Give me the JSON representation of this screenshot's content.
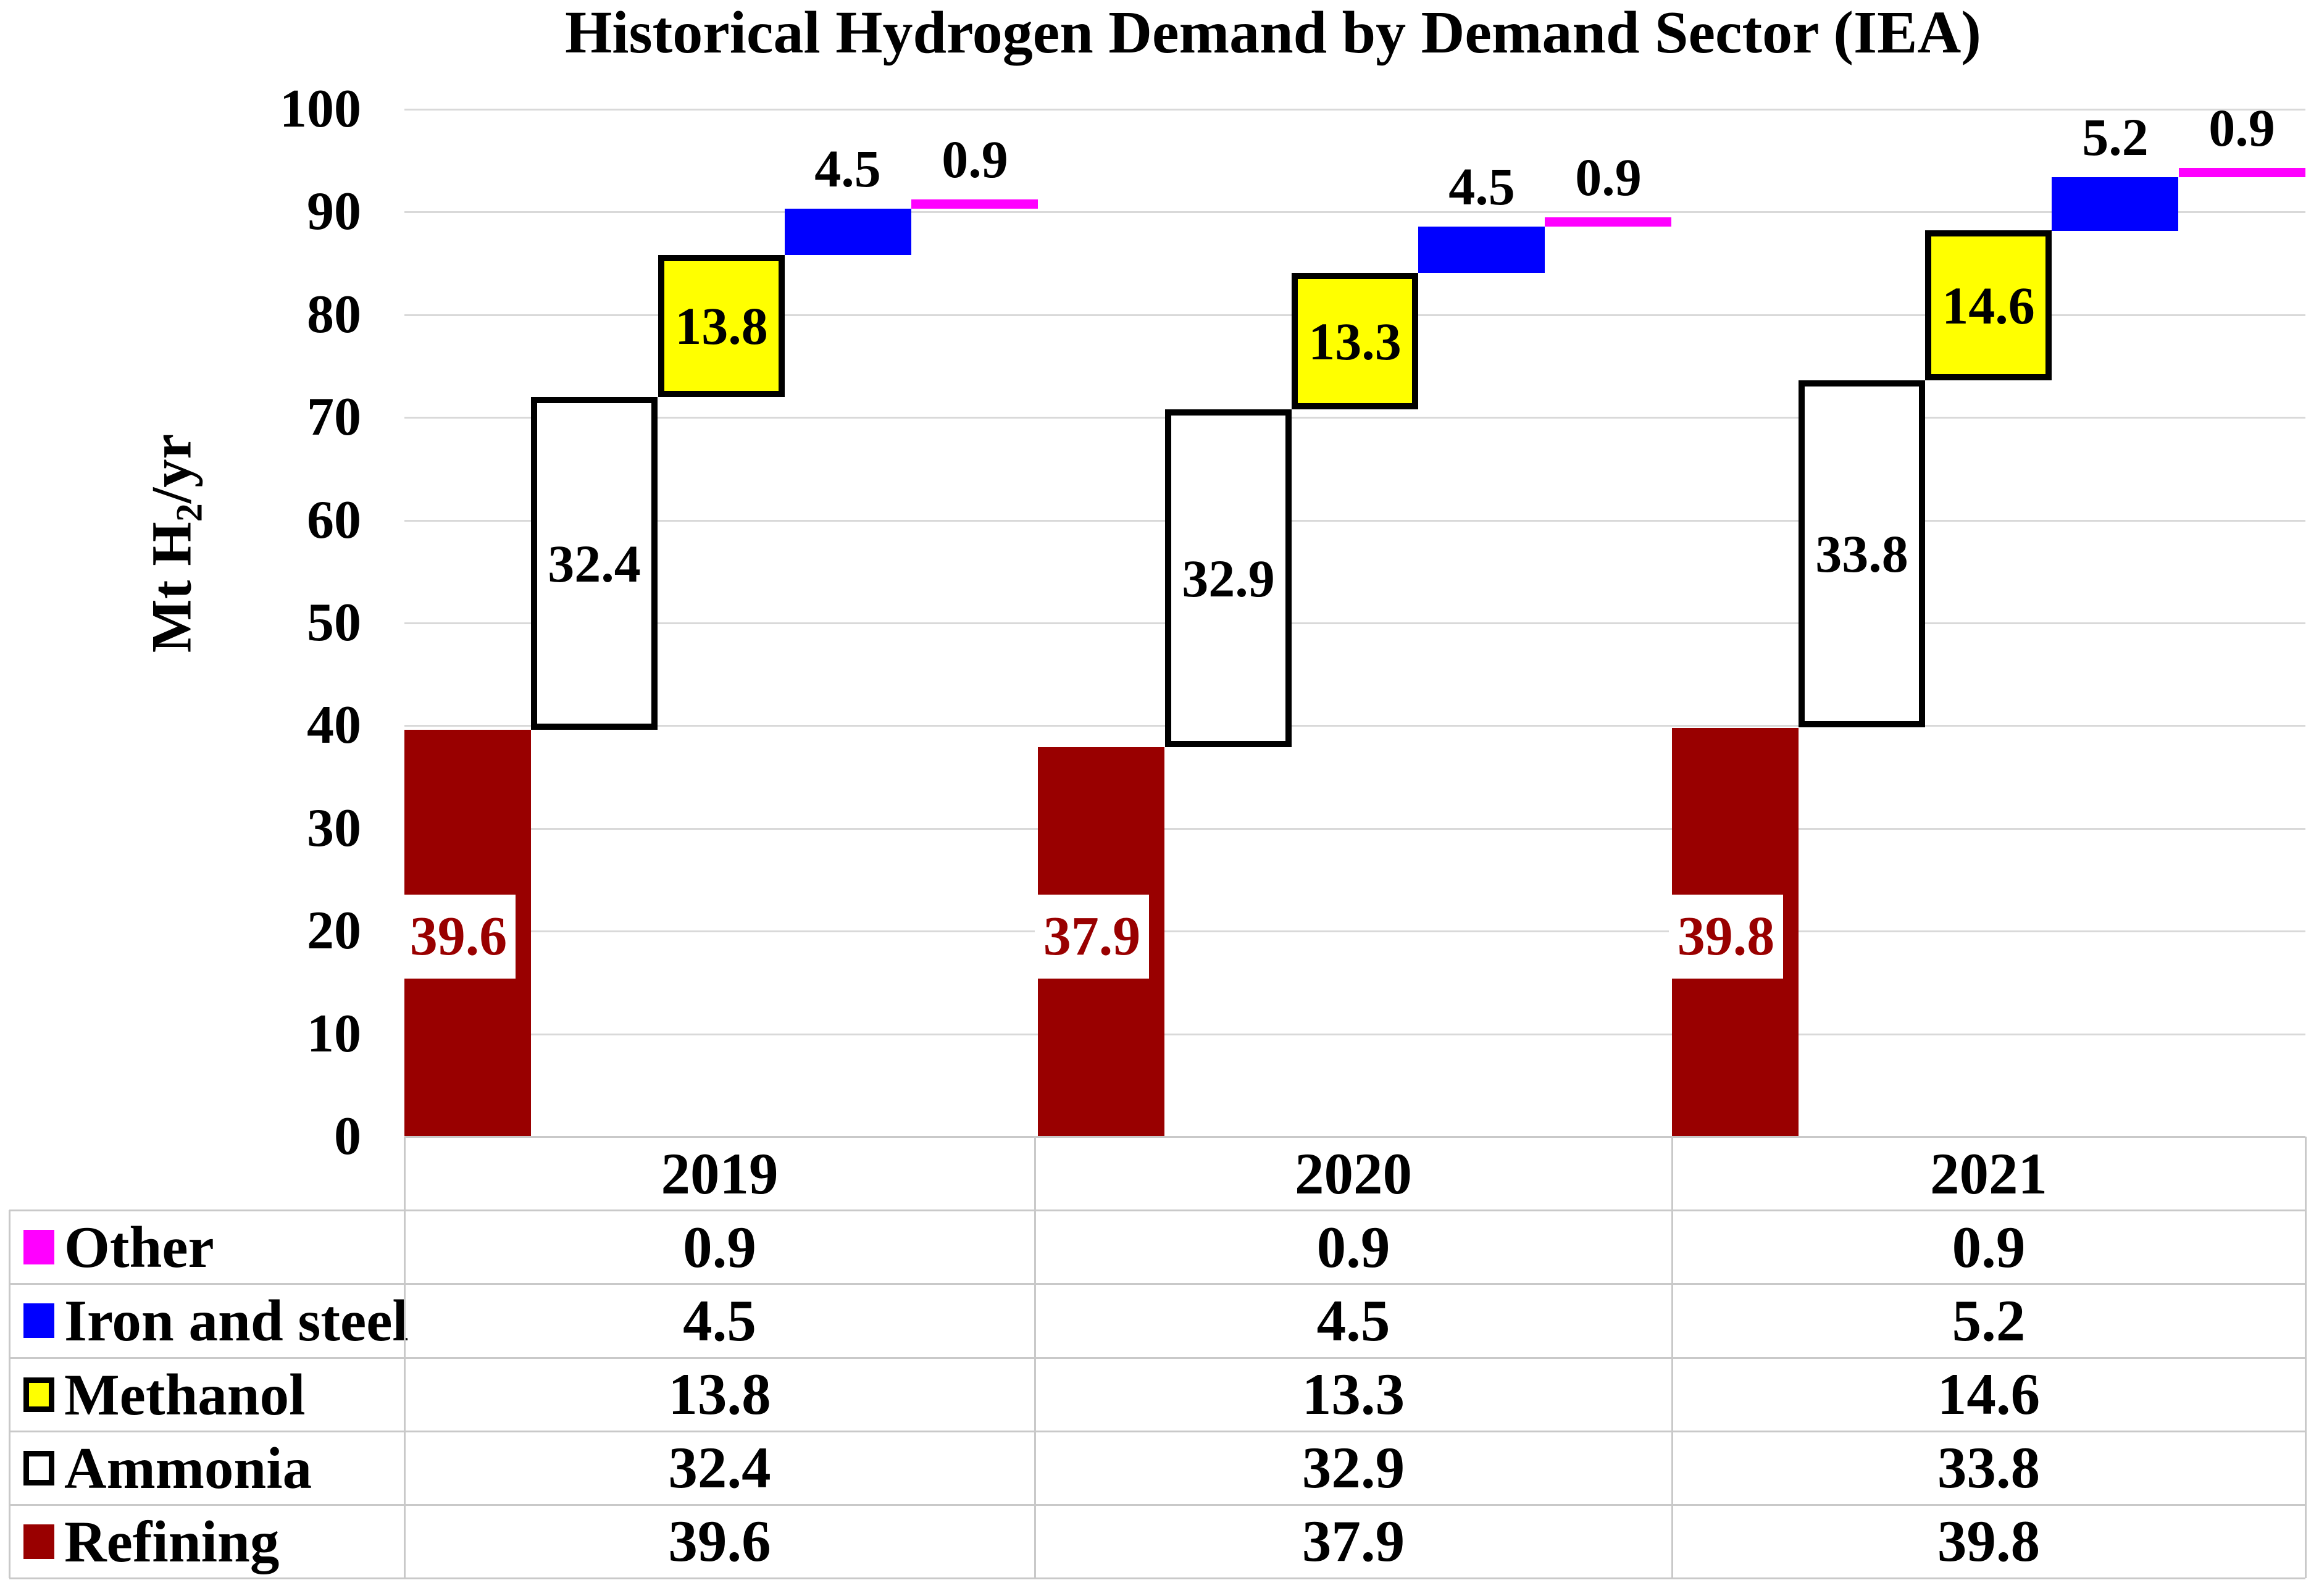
{
  "chart_data": {
    "type": "bar",
    "subtype": "waterfall_stacked_by_year",
    "title": "Historical Hydrogen Demand by Demand Sector (IEA)",
    "ylabel": {
      "prefix": "Mt H",
      "sub": "2",
      "suffix": "/yr"
    },
    "ylim": [
      0,
      100
    ],
    "ytick_step": 10,
    "grid": true,
    "legend_position": "table-left-column",
    "categories": [
      "2019",
      "2020",
      "2021"
    ],
    "series": [
      {
        "name": "Refining",
        "values": [
          39.6,
          37.9,
          39.8
        ],
        "color": "#990000",
        "border": null,
        "label": "inside-base-white-box",
        "label_color": "#990000"
      },
      {
        "name": "Ammonia",
        "values": [
          32.4,
          32.9,
          33.8
        ],
        "color": "#FFFFFF",
        "border": "#000000",
        "label": "inside-center",
        "label_color": "#000000"
      },
      {
        "name": "Methanol",
        "values": [
          13.8,
          13.3,
          14.6
        ],
        "color": "#FFFF00",
        "border": "#000000",
        "label": "inside-center",
        "label_color": "#000000"
      },
      {
        "name": "Iron and steel",
        "values": [
          4.5,
          4.5,
          5.2
        ],
        "color": "#0000FF",
        "border": null,
        "label": "above",
        "label_color": "#000000"
      },
      {
        "name": "Other",
        "values": [
          0.9,
          0.9,
          0.9
        ],
        "color": "#FF00FF",
        "border": null,
        "label": "above",
        "label_color": "#000000"
      }
    ],
    "table_row_order": [
      "Other",
      "Iron and steel",
      "Methanol",
      "Ammonia",
      "Refining"
    ]
  },
  "colors": {
    "gridline": "#D9D9D9",
    "table_border": "#C9C9C9",
    "background": "#FFFFFF",
    "refining": "#990000",
    "ammonia_fill": "#FFFFFF",
    "methanol": "#FFFF00",
    "iron_and_steel": "#0000FF",
    "other": "#FF00FF",
    "box_border": "#000000"
  }
}
